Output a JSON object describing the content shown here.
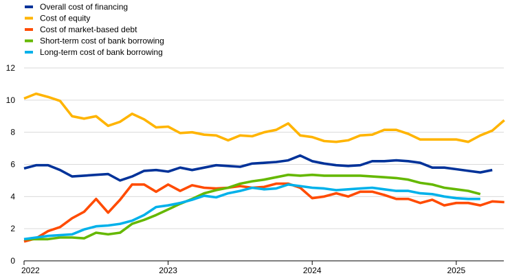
{
  "chart_data": {
    "type": "line",
    "title": "",
    "xlabel": "",
    "ylabel": "",
    "ylim": [
      0,
      12
    ],
    "y_ticks": [
      0,
      2,
      4,
      6,
      8,
      10,
      12
    ],
    "x_ticks": [
      {
        "label": "2022",
        "value": 2022.0
      },
      {
        "label": "2023",
        "value": 2023.0
      },
      {
        "label": "2024",
        "value": 2024.0
      },
      {
        "label": "2025",
        "value": 2025.0
      }
    ],
    "xlim": [
      2022.0,
      2025.33
    ],
    "grid": "horizontal",
    "legend_position": "top-left",
    "series": [
      {
        "name": "Overall cost of financing",
        "color": "#003299",
        "start": 2022.0,
        "step_months": 1,
        "values": [
          5.75,
          5.95,
          5.95,
          5.65,
          5.25,
          5.3,
          5.35,
          5.4,
          5.0,
          5.25,
          5.6,
          5.65,
          5.55,
          5.8,
          5.65,
          5.8,
          5.95,
          5.9,
          5.85,
          6.05,
          6.1,
          6.15,
          6.25,
          6.55,
          6.2,
          6.05,
          5.95,
          5.9,
          5.95,
          6.2,
          6.2,
          6.25,
          6.2,
          6.1,
          5.8,
          5.8,
          5.7,
          5.6,
          5.5,
          5.65
        ]
      },
      {
        "name": "Cost of equity",
        "color": "#FFB400",
        "start": 2022.0,
        "step_months": 1,
        "values": [
          10.1,
          10.4,
          10.2,
          9.95,
          9.0,
          8.85,
          9.0,
          8.4,
          8.65,
          9.15,
          8.8,
          8.3,
          8.35,
          7.95,
          8.0,
          7.85,
          7.8,
          7.5,
          7.8,
          7.75,
          8.0,
          8.15,
          8.55,
          7.8,
          7.7,
          7.45,
          7.4,
          7.5,
          7.8,
          7.85,
          8.15,
          8.15,
          7.9,
          7.55,
          7.55,
          7.55,
          7.55,
          7.4,
          7.8,
          8.1,
          8.75
        ]
      },
      {
        "name": "Cost of market-based debt",
        "color": "#FF4B00",
        "start": 2022.0,
        "step_months": 1,
        "values": [
          1.2,
          1.4,
          1.85,
          2.1,
          2.65,
          3.05,
          3.85,
          3.0,
          3.8,
          4.75,
          4.75,
          4.3,
          4.75,
          4.35,
          4.7,
          4.55,
          4.5,
          4.55,
          4.65,
          4.55,
          4.6,
          4.8,
          4.8,
          4.55,
          3.9,
          4.0,
          4.2,
          4.0,
          4.3,
          4.3,
          4.1,
          3.85,
          3.85,
          3.6,
          3.8,
          3.45,
          3.6,
          3.6,
          3.45,
          3.7,
          3.65
        ]
      },
      {
        "name": "Short-term cost of bank borrowing",
        "color": "#65B800",
        "start": 2022.0,
        "step_months": 1,
        "values": [
          1.35,
          1.35,
          1.35,
          1.45,
          1.45,
          1.4,
          1.75,
          1.65,
          1.75,
          2.3,
          2.55,
          2.85,
          3.2,
          3.55,
          3.85,
          4.2,
          4.4,
          4.55,
          4.8,
          4.95,
          5.05,
          5.2,
          5.35,
          5.3,
          5.35,
          5.3,
          5.3,
          5.3,
          5.3,
          5.25,
          5.2,
          5.15,
          5.05,
          4.85,
          4.75,
          4.55,
          4.45,
          4.35,
          4.15
        ]
      },
      {
        "name": "Long-term cost of bank borrowing",
        "color": "#00B1EA",
        "start": 2022.0,
        "step_months": 1,
        "values": [
          1.35,
          1.45,
          1.55,
          1.6,
          1.65,
          1.95,
          2.15,
          2.2,
          2.3,
          2.5,
          2.85,
          3.35,
          3.45,
          3.6,
          3.8,
          4.05,
          3.95,
          4.2,
          4.35,
          4.55,
          4.45,
          4.5,
          4.75,
          4.65,
          4.55,
          4.5,
          4.4,
          4.45,
          4.5,
          4.55,
          4.45,
          4.35,
          4.35,
          4.2,
          4.15,
          4.0,
          3.9,
          3.85,
          3.85
        ]
      }
    ]
  }
}
